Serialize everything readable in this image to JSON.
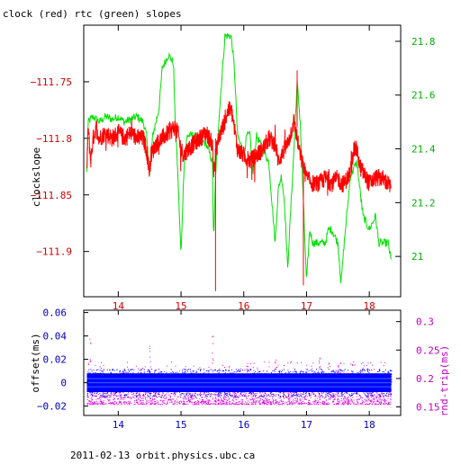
{
  "title": "clock (red) rtc (green) slopes",
  "footer": "2011-02-13 orbit.physics.ubc.ca",
  "colors": {
    "clock": "#ff0000",
    "rtc": "#00e000",
    "offset": "#0000ff",
    "roundtrip": "#e000e0",
    "left_axis_top": "#d00000",
    "right_axis_top": "#00b000",
    "axis_bottom": "#0000c0",
    "right_axis_bottom": "#c000c0",
    "frame": "#000000"
  },
  "chart_data": [
    {
      "type": "line",
      "title": "clock (red) rtc (green) slopes",
      "xlim": [
        13.45,
        18.5
      ],
      "ylabel": "clockslope",
      "ylim": [
        -111.94,
        -111.7
      ],
      "y2lim": [
        20.85,
        21.86
      ],
      "x_ticks": [
        "14",
        "15",
        "16",
        "17",
        "18"
      ],
      "y_ticks": [
        "-111.75",
        "-111.8",
        "-111.85",
        "-111.9"
      ],
      "y2_ticks": [
        "21.8",
        "21.6",
        "21.4",
        "21.2",
        "21"
      ],
      "series": [
        {
          "name": "clock",
          "axis": "left",
          "points": [
            [
              13.5,
              -111.83
            ],
            [
              13.52,
              -111.79
            ],
            [
              13.56,
              -111.82
            ],
            [
              13.6,
              -111.8
            ],
            [
              13.65,
              -111.79
            ],
            [
              13.7,
              -111.8
            ],
            [
              13.8,
              -111.795
            ],
            [
              13.9,
              -111.8
            ],
            [
              14.0,
              -111.795
            ],
            [
              14.1,
              -111.8
            ],
            [
              14.2,
              -111.795
            ],
            [
              14.3,
              -111.8
            ],
            [
              14.4,
              -111.8
            ],
            [
              14.45,
              -111.81
            ],
            [
              14.5,
              -111.83
            ],
            [
              14.52,
              -111.815
            ],
            [
              14.6,
              -111.805
            ],
            [
              14.7,
              -111.8
            ],
            [
              14.8,
              -111.795
            ],
            [
              14.9,
              -111.79
            ],
            [
              14.95,
              -111.795
            ],
            [
              15.0,
              -111.81
            ],
            [
              15.05,
              -111.815
            ],
            [
              15.1,
              -111.81
            ],
            [
              15.2,
              -111.805
            ],
            [
              15.3,
              -111.8
            ],
            [
              15.4,
              -111.795
            ],
            [
              15.5,
              -111.805
            ],
            [
              15.52,
              -111.83
            ],
            [
              15.55,
              -111.815
            ],
            [
              15.6,
              -111.8
            ],
            [
              15.7,
              -111.785
            ],
            [
              15.75,
              -111.775
            ],
            [
              15.8,
              -111.775
            ],
            [
              15.85,
              -111.79
            ],
            [
              15.9,
              -111.81
            ],
            [
              16.0,
              -111.815
            ],
            [
              16.1,
              -111.82
            ],
            [
              16.2,
              -111.815
            ],
            [
              16.3,
              -111.81
            ],
            [
              16.4,
              -111.8
            ],
            [
              16.5,
              -111.805
            ],
            [
              16.55,
              -111.82
            ],
            [
              16.6,
              -111.815
            ],
            [
              16.7,
              -111.805
            ],
            [
              16.75,
              -111.795
            ],
            [
              16.8,
              -111.785
            ],
            [
              16.85,
              -111.8
            ],
            [
              16.9,
              -111.815
            ],
            [
              17.0,
              -111.835
            ],
            [
              17.1,
              -111.84
            ],
            [
              17.2,
              -111.84
            ],
            [
              17.3,
              -111.835
            ],
            [
              17.4,
              -111.84
            ],
            [
              17.5,
              -111.835
            ],
            [
              17.55,
              -111.84
            ],
            [
              17.6,
              -111.84
            ],
            [
              17.7,
              -111.83
            ],
            [
              17.75,
              -111.81
            ],
            [
              17.8,
              -111.81
            ],
            [
              17.85,
              -111.825
            ],
            [
              17.9,
              -111.83
            ],
            [
              18.0,
              -111.84
            ],
            [
              18.1,
              -111.835
            ],
            [
              18.2,
              -111.835
            ],
            [
              18.3,
              -111.84
            ],
            [
              18.35,
              -111.845
            ]
          ]
        },
        {
          "name": "rtc",
          "axis": "right",
          "points": [
            [
              13.5,
              21.31
            ],
            [
              13.52,
              21.5
            ],
            [
              13.6,
              21.52
            ],
            [
              13.7,
              21.5
            ],
            [
              13.8,
              21.52
            ],
            [
              13.9,
              21.51
            ],
            [
              14.0,
              21.52
            ],
            [
              14.1,
              21.5
            ],
            [
              14.2,
              21.51
            ],
            [
              14.3,
              21.52
            ],
            [
              14.4,
              21.5
            ],
            [
              14.45,
              21.45
            ],
            [
              14.5,
              21.3
            ],
            [
              14.55,
              21.45
            ],
            [
              14.6,
              21.5
            ],
            [
              14.65,
              21.55
            ],
            [
              14.7,
              21.7
            ],
            [
              14.8,
              21.75
            ],
            [
              14.88,
              21.72
            ],
            [
              14.9,
              21.55
            ],
            [
              14.95,
              21.3
            ],
            [
              15.0,
              21.0
            ],
            [
              15.05,
              21.35
            ],
            [
              15.1,
              21.45
            ],
            [
              15.2,
              21.45
            ],
            [
              15.3,
              21.43
            ],
            [
              15.4,
              21.42
            ],
            [
              15.5,
              21.35
            ],
            [
              15.52,
              21.05
            ],
            [
              15.55,
              21.3
            ],
            [
              15.6,
              21.5
            ],
            [
              15.7,
              21.82
            ],
            [
              15.8,
              21.82
            ],
            [
              15.85,
              21.7
            ],
            [
              15.9,
              21.45
            ],
            [
              16.0,
              21.38
            ],
            [
              16.05,
              21.45
            ],
            [
              16.1,
              21.45
            ],
            [
              16.15,
              21.3
            ],
            [
              16.2,
              21.45
            ],
            [
              16.3,
              21.4
            ],
            [
              16.4,
              21.35
            ],
            [
              16.45,
              21.2
            ],
            [
              16.5,
              21.05
            ],
            [
              16.55,
              21.25
            ],
            [
              16.6,
              21.3
            ],
            [
              16.65,
              21.2
            ],
            [
              16.7,
              20.95
            ],
            [
              16.72,
              21.05
            ],
            [
              16.8,
              21.4
            ],
            [
              16.85,
              21.65
            ],
            [
              16.9,
              21.5
            ],
            [
              16.95,
              21.2
            ],
            [
              17.0,
              20.9
            ],
            [
              17.05,
              21.1
            ],
            [
              17.1,
              21.05
            ],
            [
              17.2,
              21.05
            ],
            [
              17.3,
              21.05
            ],
            [
              17.35,
              21.1
            ],
            [
              17.4,
              21.1
            ],
            [
              17.5,
              21.05
            ],
            [
              17.55,
              20.9
            ],
            [
              17.6,
              21.05
            ],
            [
              17.7,
              21.3
            ],
            [
              17.8,
              21.35
            ],
            [
              17.85,
              21.25
            ],
            [
              17.9,
              21.15
            ],
            [
              18.0,
              21.1
            ],
            [
              18.1,
              21.15
            ],
            [
              18.15,
              21.05
            ],
            [
              18.2,
              21.05
            ],
            [
              18.3,
              21.05
            ],
            [
              18.35,
              20.98
            ]
          ]
        }
      ]
    },
    {
      "type": "scatter",
      "xlim": [
        13.45,
        18.5
      ],
      "ylabel": "offset(ms)",
      "y2label": "rnd-trip(ms)",
      "ylim": [
        -0.028,
        0.062
      ],
      "y2lim": [
        0.135,
        0.32
      ],
      "x_ticks": [
        "14",
        "15",
        "16",
        "17",
        "18"
      ],
      "y_ticks": [
        "0.06",
        "0.04",
        "0.02",
        "0",
        "-0.02"
      ],
      "y2_ticks": [
        "0.3",
        "0.25",
        "0.2",
        "0.15"
      ],
      "series": [
        {
          "name": "offset",
          "axis": "left",
          "x_range": [
            13.5,
            18.35
          ],
          "band": [
            -0.008,
            0.008
          ],
          "spread": [
            -0.012,
            0.012
          ]
        },
        {
          "name": "rnd-trip",
          "axis": "right",
          "x_range": [
            13.5,
            18.35
          ],
          "band": [
            0.155,
            0.21
          ],
          "spikes": [
            [
              13.55,
              0.27
            ],
            [
              14.5,
              0.26
            ],
            [
              15.5,
              0.3
            ],
            [
              16.05,
              0.23
            ],
            [
              16.5,
              0.235
            ],
            [
              17.2,
              0.24
            ],
            [
              17.5,
              0.225
            ]
          ]
        }
      ]
    }
  ]
}
